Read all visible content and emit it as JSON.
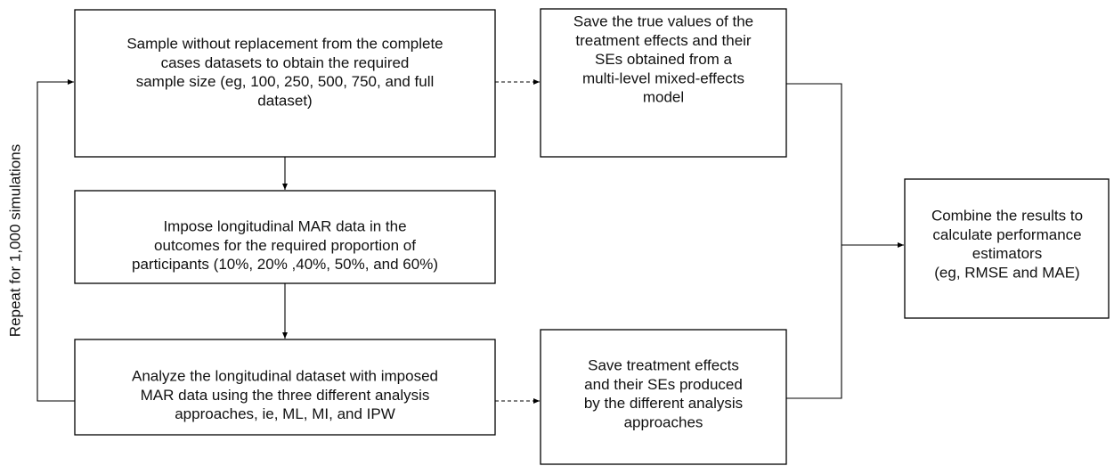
{
  "nodes": [
    {
      "lines": [
        "Sample without replacement from the complete",
        "cases datasets to obtain the required",
        "sample size (eg, 100, 250, 500, 750, and full",
        "dataset)"
      ]
    },
    {
      "lines": [
        "Save the true values of the",
        "treatment effects and their",
        "SEs obtained from a",
        "multi-level mixed-effects",
        "model"
      ]
    },
    {
      "lines": [
        "Impose longitudinal MAR data in the",
        "outcomes for the required proportion of",
        "participants (10%, 20% ,40%, 50%, and 60%)"
      ]
    },
    {
      "lines": [
        "Analyze the longitudinal dataset with imposed",
        "MAR data using the three different analysis",
        "approaches, ie, ML, MI, and IPW"
      ]
    },
    {
      "lines": [
        "Save treatment effects",
        "and their SEs produced",
        "by the different analysis",
        "approaches"
      ]
    },
    {
      "lines": [
        "Combine the results to",
        "calculate performance",
        "estimators",
        "(eg, RMSE and MAE)"
      ]
    }
  ],
  "loop_label": "Repeat for 1,000 simulations"
}
